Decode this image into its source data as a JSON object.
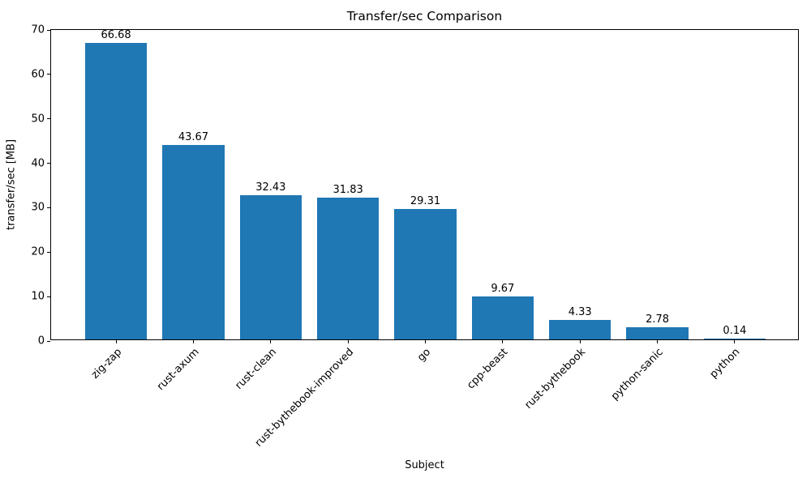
{
  "chart_data": {
    "type": "bar",
    "title": "Transfer/sec Comparison",
    "xlabel": "Subject",
    "ylabel": "transfer/sec [MB]",
    "categories": [
      "zig-zap",
      "rust-axum",
      "rust-clean",
      "rust-bythebook-improved",
      "go",
      "cpp-beast",
      "rust-bythebook",
      "python-sanic",
      "python"
    ],
    "values": [
      66.68,
      43.67,
      32.43,
      31.83,
      29.31,
      9.67,
      4.33,
      2.78,
      0.14
    ],
    "value_labels": [
      "66.68",
      "43.67",
      "32.43",
      "31.83",
      "29.31",
      "9.67",
      "4.33",
      "2.78",
      "0.14"
    ],
    "ylim": [
      0,
      70
    ],
    "yticks": [
      0,
      10,
      20,
      30,
      40,
      50,
      60,
      70
    ],
    "grid": false,
    "legend": "none",
    "bar_color": "#1f77b4",
    "text_color": "#000000",
    "spine_color": "#000000"
  }
}
